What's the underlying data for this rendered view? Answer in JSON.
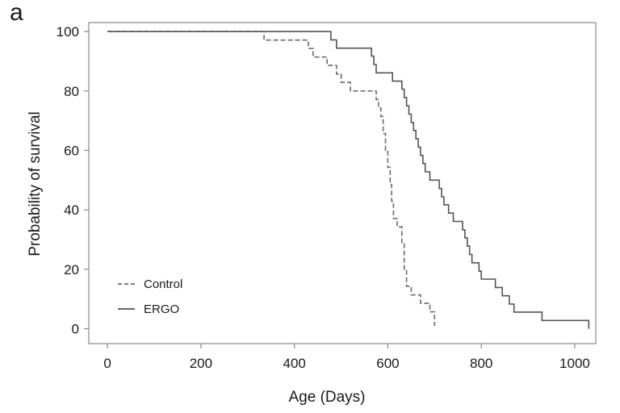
{
  "figure": {
    "panel_label": "a"
  },
  "chart_data": {
    "type": "line",
    "step": true,
    "xlabel": "Age (Days)",
    "ylabel": "Probability of survival",
    "xlim": [
      -40,
      1045
    ],
    "ylim": [
      -5,
      103
    ],
    "xticks": [
      0,
      200,
      400,
      600,
      800,
      1000
    ],
    "yticks": [
      0,
      20,
      40,
      60,
      80,
      100
    ],
    "grid": false,
    "legend_position": "bottom-left",
    "series": [
      {
        "name": "Control",
        "style": "dashed",
        "color": "#6b6b6b",
        "points": [
          [
            0,
            100
          ],
          [
            335,
            100
          ],
          [
            335,
            97.1
          ],
          [
            430,
            97.1
          ],
          [
            430,
            94.3
          ],
          [
            440,
            94.3
          ],
          [
            440,
            91.4
          ],
          [
            470,
            91.4
          ],
          [
            470,
            88.6
          ],
          [
            490,
            88.6
          ],
          [
            490,
            85.7
          ],
          [
            500,
            85.7
          ],
          [
            500,
            82.9
          ],
          [
            520,
            82.9
          ],
          [
            520,
            80
          ],
          [
            575,
            80
          ],
          [
            575,
            77.1
          ],
          [
            580,
            77.1
          ],
          [
            580,
            74.3
          ],
          [
            585,
            74.3
          ],
          [
            585,
            71.4
          ],
          [
            590,
            71.4
          ],
          [
            590,
            65.7
          ],
          [
            595,
            65.7
          ],
          [
            595,
            60
          ],
          [
            600,
            60
          ],
          [
            600,
            54.3
          ],
          [
            605,
            54.3
          ],
          [
            605,
            48.6
          ],
          [
            608,
            48.6
          ],
          [
            608,
            42.9
          ],
          [
            612,
            42.9
          ],
          [
            612,
            37.1
          ],
          [
            620,
            37.1
          ],
          [
            620,
            34.3
          ],
          [
            630,
            34.3
          ],
          [
            630,
            28.6
          ],
          [
            635,
            28.6
          ],
          [
            635,
            20
          ],
          [
            640,
            20
          ],
          [
            640,
            14.3
          ],
          [
            650,
            14.3
          ],
          [
            650,
            11.4
          ],
          [
            670,
            11.4
          ],
          [
            670,
            8.6
          ],
          [
            690,
            8.6
          ],
          [
            690,
            5.7
          ],
          [
            700,
            5.7
          ],
          [
            700,
            1
          ]
        ]
      },
      {
        "name": "ERGO",
        "style": "solid",
        "color": "#555555",
        "points": [
          [
            0,
            100
          ],
          [
            478,
            100
          ],
          [
            478,
            97.2
          ],
          [
            490,
            97.2
          ],
          [
            490,
            94.4
          ],
          [
            565,
            94.4
          ],
          [
            565,
            91.7
          ],
          [
            570,
            91.7
          ],
          [
            570,
            88.9
          ],
          [
            575,
            88.9
          ],
          [
            575,
            86.1
          ],
          [
            610,
            86.1
          ],
          [
            610,
            83.3
          ],
          [
            630,
            83.3
          ],
          [
            630,
            80.6
          ],
          [
            635,
            80.6
          ],
          [
            635,
            77.8
          ],
          [
            640,
            77.8
          ],
          [
            640,
            75
          ],
          [
            645,
            75
          ],
          [
            645,
            72.2
          ],
          [
            650,
            72.2
          ],
          [
            650,
            69.4
          ],
          [
            655,
            69.4
          ],
          [
            655,
            66.7
          ],
          [
            660,
            66.7
          ],
          [
            660,
            63.9
          ],
          [
            665,
            63.9
          ],
          [
            665,
            61.1
          ],
          [
            670,
            61.1
          ],
          [
            670,
            58.3
          ],
          [
            675,
            58.3
          ],
          [
            675,
            55.6
          ],
          [
            680,
            55.6
          ],
          [
            680,
            52.8
          ],
          [
            690,
            52.8
          ],
          [
            690,
            50
          ],
          [
            710,
            50
          ],
          [
            710,
            47.2
          ],
          [
            715,
            47.2
          ],
          [
            715,
            44.4
          ],
          [
            720,
            44.4
          ],
          [
            720,
            41.7
          ],
          [
            730,
            41.7
          ],
          [
            730,
            38.9
          ],
          [
            740,
            38.9
          ],
          [
            740,
            36.1
          ],
          [
            760,
            36.1
          ],
          [
            760,
            33.3
          ],
          [
            765,
            33.3
          ],
          [
            765,
            30.6
          ],
          [
            770,
            30.6
          ],
          [
            770,
            27.8
          ],
          [
            775,
            27.8
          ],
          [
            775,
            25
          ],
          [
            780,
            25
          ],
          [
            780,
            22.2
          ],
          [
            795,
            22.2
          ],
          [
            795,
            19.4
          ],
          [
            800,
            19.4
          ],
          [
            800,
            16.7
          ],
          [
            830,
            16.7
          ],
          [
            830,
            13.9
          ],
          [
            845,
            13.9
          ],
          [
            845,
            11.1
          ],
          [
            860,
            11.1
          ],
          [
            860,
            8.3
          ],
          [
            870,
            8.3
          ],
          [
            870,
            5.6
          ],
          [
            930,
            5.6
          ],
          [
            930,
            2.8
          ],
          [
            1030,
            2.8
          ],
          [
            1030,
            0
          ]
        ]
      }
    ]
  }
}
